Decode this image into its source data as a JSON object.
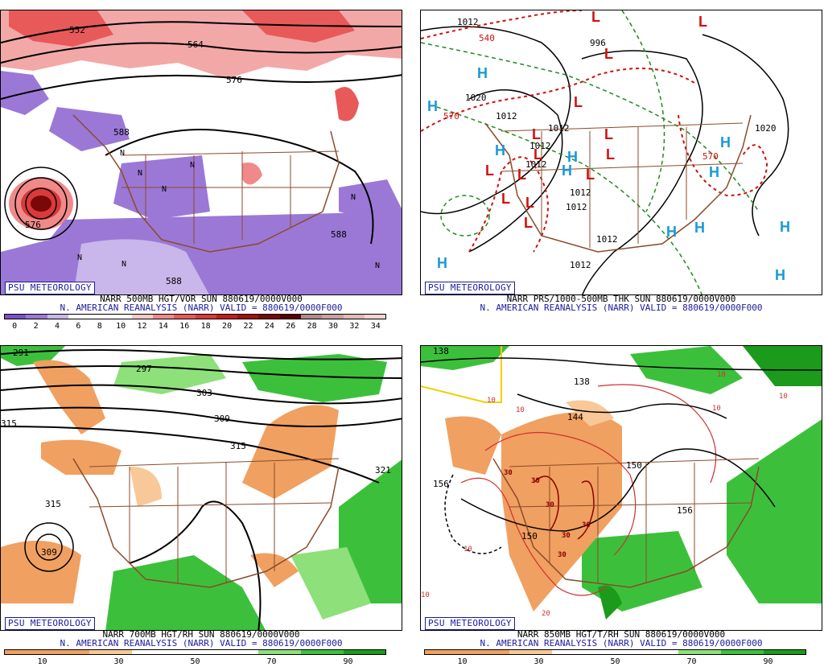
{
  "badge_text": "PSU METEOROLOGY",
  "panels": {
    "tl": {
      "caption1": "NARR 500MB HGT/VOR SUN 880619/0000V000",
      "caption2": "N. AMERICAN REANALYSIS (NARR) VALID = 880619/0000F000",
      "ticks": [
        "0",
        "2",
        "4",
        "6",
        "8",
        "10",
        "12",
        "14",
        "16",
        "18",
        "20",
        "22",
        "24",
        "26",
        "28",
        "30",
        "32",
        "34"
      ],
      "labels": [
        "552",
        "564",
        "576",
        "588",
        "588",
        "588",
        "576",
        "N",
        "N",
        "N",
        "N",
        "N",
        "N",
        "N",
        "N"
      ],
      "colors": [
        "#7b4fc8",
        "#9b78d6",
        "#c9b6ea",
        "#ffffff",
        "#ffffff",
        "#ffffff",
        "#f7c8c8",
        "#f08a8a",
        "#e85a5a",
        "#d93a3a",
        "#c21e1e",
        "#a01010",
        "#7a0808",
        "#5a0000",
        "#b08a8a",
        "#c8a0a0",
        "#e0b8b8",
        "#f4d4d4"
      ]
    },
    "tr": {
      "caption1": "NARR PRS/1000-500MB THK SUN 880619/0000V000",
      "caption2": "N. AMERICAN REANALYSIS (NARR) VALID = 880619/0000F000",
      "highs": [
        "H",
        "H",
        "H",
        "H",
        "H",
        "H",
        "H",
        "H",
        "H",
        "H",
        "H",
        "H"
      ],
      "lows": [
        "L",
        "L",
        "L",
        "L",
        "L",
        "L",
        "L",
        "L",
        "L",
        "L",
        "L",
        "L",
        "L",
        "L"
      ],
      "isobars": [
        "1012",
        "1020",
        "1012",
        "1012",
        "1012",
        "1012",
        "1012",
        "1012",
        "1012",
        "1012",
        "1020",
        "996",
        "540",
        "570",
        "570"
      ]
    },
    "bl": {
      "caption1": "NARR 700MB HGT/RH SUN 880619/0000V000",
      "caption2": "N. AMERICAN REANALYSIS (NARR) VALID = 880619/0000F000",
      "ticks": [
        "10",
        "30",
        "50",
        "70",
        "90"
      ],
      "labels": [
        "291",
        "297",
        "303",
        "309",
        "315",
        "315",
        "315",
        "321",
        "309"
      ],
      "colors": [
        "#f0a060",
        "#f0a060",
        "#f8c898",
        "#ffffff",
        "#ffffff",
        "#ffffff",
        "#8ee07a",
        "#3cc03c",
        "#1c9a1c"
      ]
    },
    "br": {
      "caption1": "NARR 850MB HGT/T/RH SUN 880619/0000V000",
      "caption2": "N. AMERICAN REANALYSIS (NARR) VALID = 880619/0000F000",
      "ticks": [
        "10",
        "30",
        "50",
        "70",
        "90"
      ],
      "labels": [
        "138",
        "138",
        "144",
        "150",
        "150",
        "156",
        "156",
        "10",
        "10",
        "10",
        "10",
        "10",
        "10",
        "30",
        "30",
        "30",
        "30",
        "30",
        "30",
        "20",
        "10"
      ],
      "colors": [
        "#f0a060",
        "#f0a060",
        "#f8c898",
        "#ffffff",
        "#ffffff",
        "#ffffff",
        "#8ee07a",
        "#3cc03c",
        "#1c9a1c"
      ]
    }
  }
}
